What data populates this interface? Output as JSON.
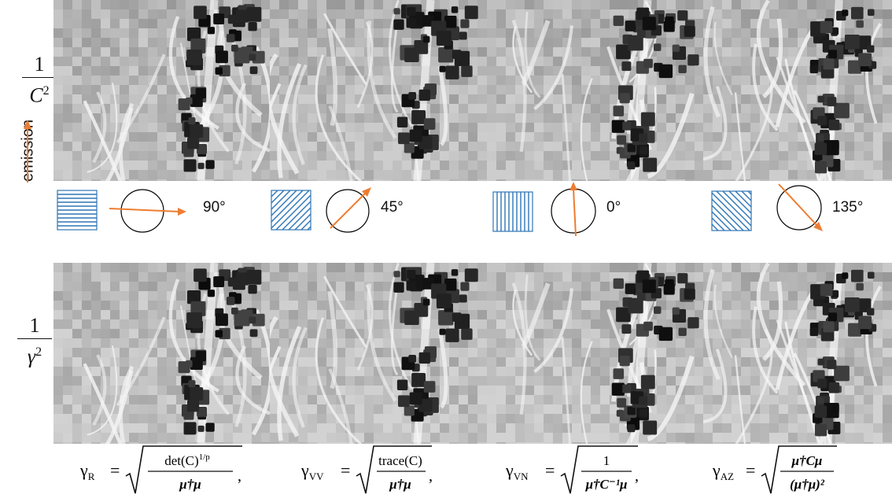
{
  "row_labels": {
    "top": {
      "numerator": "1",
      "denominator": "C",
      "exponent": "2"
    },
    "bottom": {
      "numerator": "1",
      "denominator": "γ",
      "exponent": "2"
    }
  },
  "emission_label": "emission",
  "angles": [
    "90°",
    "45°",
    "0°",
    "135°"
  ],
  "formulas": [
    {
      "name": "γR",
      "sub": "R",
      "num": "det(C)",
      "num_sup": "1/p",
      "den": "μ†μ",
      "trail": ","
    },
    {
      "name": "γVV",
      "sub": "VV",
      "num": "trace(C)",
      "num_sup": "",
      "den": "μ†μ",
      "trail": ","
    },
    {
      "name": "γVN",
      "sub": "VN",
      "num": "1",
      "num_sup": "",
      "den": "μ†C⁻¹μ",
      "trail": ","
    },
    {
      "name": "γAZ",
      "sub": "AZ",
      "num": "μ†Cμ",
      "num_sup": "",
      "den": "(μ†μ)²",
      "trail": ""
    }
  ],
  "colors": {
    "arrow": "#ed7d31",
    "hatch": "#2e75b6",
    "frame": "#000000"
  }
}
